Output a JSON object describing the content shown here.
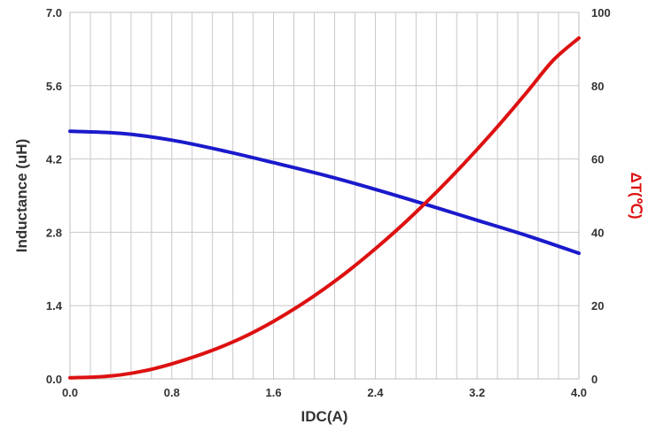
{
  "chart_data": {
    "type": "line",
    "xlabel": "IDC(A)",
    "ylabel": "Inductance (uH)",
    "y2label": "ΔT(℃)",
    "xlim": [
      0,
      4.0
    ],
    "ylim": [
      0,
      7.0
    ],
    "y2lim": [
      0,
      100
    ],
    "x_ticks": [
      "0.0",
      "0.8",
      "1.6",
      "2.4",
      "3.2",
      "4.0"
    ],
    "y_ticks": [
      "0.0",
      "1.4",
      "2.8",
      "4.2",
      "5.6",
      "7.0"
    ],
    "y2_ticks": [
      "0",
      "20",
      "40",
      "60",
      "80",
      "100"
    ],
    "grid": true,
    "minor_x_step": 0.16,
    "series": [
      {
        "axis": "left",
        "color": "#1a1acc",
        "x": [
          0,
          0.4,
          0.8,
          1.2,
          1.6,
          2.0,
          2.4,
          2.8,
          3.2,
          3.6,
          4.0
        ],
        "y": [
          4.73,
          4.69,
          4.56,
          4.36,
          4.13,
          3.89,
          3.62,
          3.33,
          3.03,
          2.73,
          2.4
        ]
      },
      {
        "axis": "right",
        "color": "#dd1111",
        "x": [
          0,
          0.2,
          0.4,
          0.6,
          0.8,
          1.0,
          1.2,
          1.4,
          1.6,
          1.8,
          2.0,
          2.2,
          2.4,
          2.6,
          2.8,
          3.0,
          3.2,
          3.4,
          3.6,
          3.8,
          4.0
        ],
        "y": [
          0.3,
          0.5,
          1.1,
          2.3,
          4.1,
          6.3,
          8.9,
          12.0,
          15.7,
          19.9,
          24.6,
          29.8,
          35.5,
          41.6,
          48.2,
          55.2,
          62.6,
          70.4,
          78.6,
          87.0,
          93.0
        ]
      }
    ]
  }
}
